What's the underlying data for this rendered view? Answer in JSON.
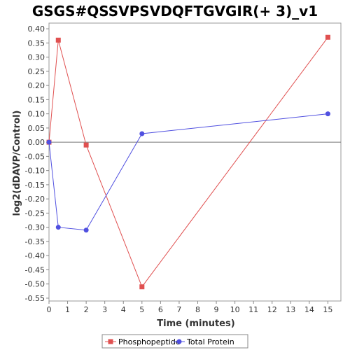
{
  "chart_data": {
    "type": "line",
    "title": "GSGS#QSSVPSVDQFTGVGIR(+ 3)_v1",
    "xlabel": "Time (minutes)",
    "ylabel": "log2(dDAVP/Control)",
    "xlim": [
      0,
      15.7
    ],
    "ylim": [
      -0.56,
      0.42
    ],
    "xticks": [
      0,
      1,
      2,
      3,
      4,
      5,
      6,
      7,
      8,
      9,
      10,
      11,
      12,
      13,
      14,
      15
    ],
    "yticks": [
      0.4,
      0.35,
      0.3,
      0.25,
      0.2,
      0.15,
      0.1,
      0.05,
      0.0,
      -0.05,
      -0.1,
      -0.15,
      -0.2,
      -0.25,
      -0.3,
      -0.35,
      -0.4,
      -0.45,
      -0.5,
      -0.55
    ],
    "yticklabels": [
      "0.40",
      "0.35",
      "0.30",
      "0.25",
      "0.20",
      "0.15",
      "0.10",
      "0.05",
      "0.00",
      "-0.05",
      "-0.10",
      "-0.15",
      "-0.20",
      "-0.25",
      "-0.30",
      "-0.35",
      "-0.40",
      "-0.45",
      "-0.50",
      "-0.55"
    ],
    "grid": false,
    "legend_position": "bottom",
    "series": [
      {
        "name": "Phosphopeptide",
        "color": "#e05050",
        "marker": "square",
        "x": [
          0,
          0.5,
          2,
          5,
          15
        ],
        "y": [
          0.0,
          0.36,
          -0.01,
          -0.51,
          0.37
        ]
      },
      {
        "name": "Total Protein",
        "color": "#5050e0",
        "marker": "circle",
        "x": [
          0,
          0.5,
          2,
          5,
          15
        ],
        "y": [
          0.0,
          -0.3,
          -0.31,
          0.03,
          0.1
        ]
      }
    ]
  }
}
